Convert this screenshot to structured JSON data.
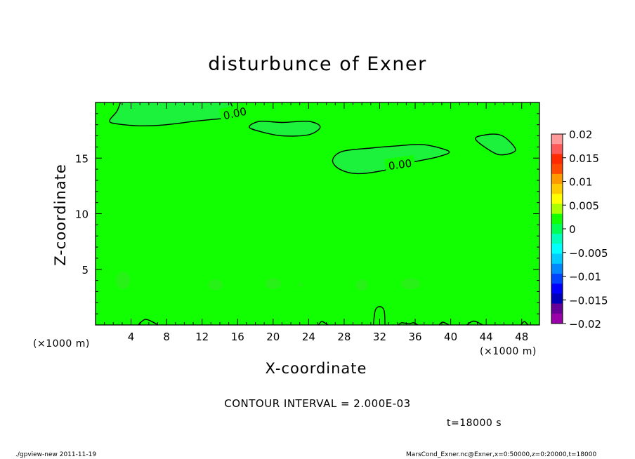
{
  "chart_data": {
    "type": "contour",
    "title": "disturbunce of Exner",
    "xlabel": "X-coordinate",
    "ylabel": "Z-coordinate",
    "x_unit_label": "(×1000 m)",
    "xlim": [
      0,
      50
    ],
    "ylim": [
      0,
      20
    ],
    "x_ticks": [
      4,
      8,
      12,
      16,
      20,
      24,
      28,
      32,
      36,
      40,
      44,
      48
    ],
    "y_ticks": [
      5,
      10,
      15
    ],
    "contour_label": "0.00",
    "contour_interval_text": "CONTOUR INTERVAL = 2.000E-03",
    "time_text": "t=18000 s",
    "field_color": "#11ff00",
    "closed_contours": [
      {
        "name": "top-left",
        "points": [
          [
            2.8,
            20
          ],
          [
            2.4,
            19.2
          ],
          [
            1.6,
            18.4
          ],
          [
            2.2,
            18.1
          ],
          [
            5,
            17.9
          ],
          [
            8,
            18.0
          ],
          [
            11,
            18.3
          ],
          [
            13.5,
            18.5
          ],
          [
            15,
            18.6
          ],
          [
            16,
            18.9
          ],
          [
            15.5,
            19.5
          ],
          [
            15.2,
            20
          ]
        ]
      },
      {
        "name": "top-center",
        "points": [
          [
            17.3,
            17.8
          ],
          [
            18.5,
            18.3
          ],
          [
            21,
            18.2
          ],
          [
            24,
            18.3
          ],
          [
            25.3,
            17.8
          ],
          [
            24,
            17.1
          ],
          [
            21,
            17.0
          ],
          [
            18.5,
            17.4
          ]
        ]
      },
      {
        "name": "mid-right",
        "points": [
          [
            26.7,
            14.8
          ],
          [
            27.8,
            15.6
          ],
          [
            31,
            15.9
          ],
          [
            34,
            16.1
          ],
          [
            37,
            16.2
          ],
          [
            39.8,
            15.6
          ],
          [
            38.5,
            15.1
          ],
          [
            35.5,
            14.6
          ],
          [
            32.5,
            13.9
          ],
          [
            29.5,
            13.6
          ],
          [
            27.5,
            14.0
          ]
        ]
      },
      {
        "name": "far-right",
        "points": [
          [
            42.8,
            16.7
          ],
          [
            44,
            17.1
          ],
          [
            45.5,
            17.1
          ],
          [
            46.5,
            16.6
          ],
          [
            47.3,
            15.7
          ],
          [
            46,
            15.3
          ],
          [
            44.8,
            15.5
          ]
        ]
      }
    ],
    "bottom_contours": [
      {
        "name": "bump-1",
        "points": [
          [
            4.8,
            0
          ],
          [
            5.6,
            0.5
          ],
          [
            6.6,
            0.2
          ],
          [
            7,
            0
          ]
        ]
      },
      {
        "name": "bump-2",
        "points": [
          [
            25.1,
            0
          ],
          [
            25.5,
            0.3
          ],
          [
            26.2,
            0
          ]
        ]
      },
      {
        "name": "bump-3",
        "points": [
          [
            31.3,
            0
          ],
          [
            31.5,
            1.3
          ],
          [
            32.0,
            1.65
          ],
          [
            32.5,
            1.3
          ],
          [
            32.6,
            0
          ]
        ]
      },
      {
        "name": "bump-4",
        "points": [
          [
            34.1,
            0
          ],
          [
            34.5,
            0.2
          ],
          [
            35.3,
            0.1
          ],
          [
            35.8,
            0.2
          ],
          [
            36.3,
            0
          ]
        ]
      },
      {
        "name": "bump-5",
        "points": [
          [
            38.7,
            0
          ],
          [
            39.1,
            0.25
          ],
          [
            39.8,
            0
          ]
        ]
      },
      {
        "name": "bump-6",
        "points": [
          [
            41.8,
            0
          ],
          [
            42.6,
            0.35
          ],
          [
            43.6,
            0
          ]
        ]
      },
      {
        "name": "bump-7",
        "points": [
          [
            47.9,
            0
          ],
          [
            48.3,
            0.3
          ],
          [
            48.7,
            0
          ]
        ]
      }
    ],
    "blobs": [
      {
        "x": 3.1,
        "y": 4.0,
        "rx": 0.8,
        "ry": 0.8
      },
      {
        "x": 13.5,
        "y": 3.6,
        "rx": 0.8,
        "ry": 0.5
      },
      {
        "x": 20.0,
        "y": 3.7,
        "rx": 0.9,
        "ry": 0.5
      },
      {
        "x": 23.1,
        "y": 3.6,
        "rx": 0.2,
        "ry": 0.2
      },
      {
        "x": 30.0,
        "y": 3.6,
        "rx": 0.7,
        "ry": 0.5
      },
      {
        "x": 35.5,
        "y": 3.7,
        "rx": 1.1,
        "ry": 0.5
      }
    ],
    "colorbar": {
      "labels": [
        "0.02",
        "0.015",
        "0.01",
        "0.005",
        "0",
        "−0.005",
        "−0.01",
        "−0.015",
        "−0.02"
      ],
      "colors": [
        "#ff9a9a",
        "#ff5a5a",
        "#ff2a00",
        "#ff4a00",
        "#ff9900",
        "#ffcc00",
        "#ffff00",
        "#aaff00",
        "#11ff00",
        "#00ff55",
        "#00ffbb",
        "#00ffff",
        "#00ccff",
        "#0088ff",
        "#0044ff",
        "#0000ff",
        "#0000bb",
        "#660099",
        "#9900aa"
      ]
    }
  },
  "footer": {
    "left": "./gpview-new   2011-11-19",
    "right": "MarsCond_Exner.nc@Exner,x=0:50000,z=0:20000,t=18000"
  }
}
